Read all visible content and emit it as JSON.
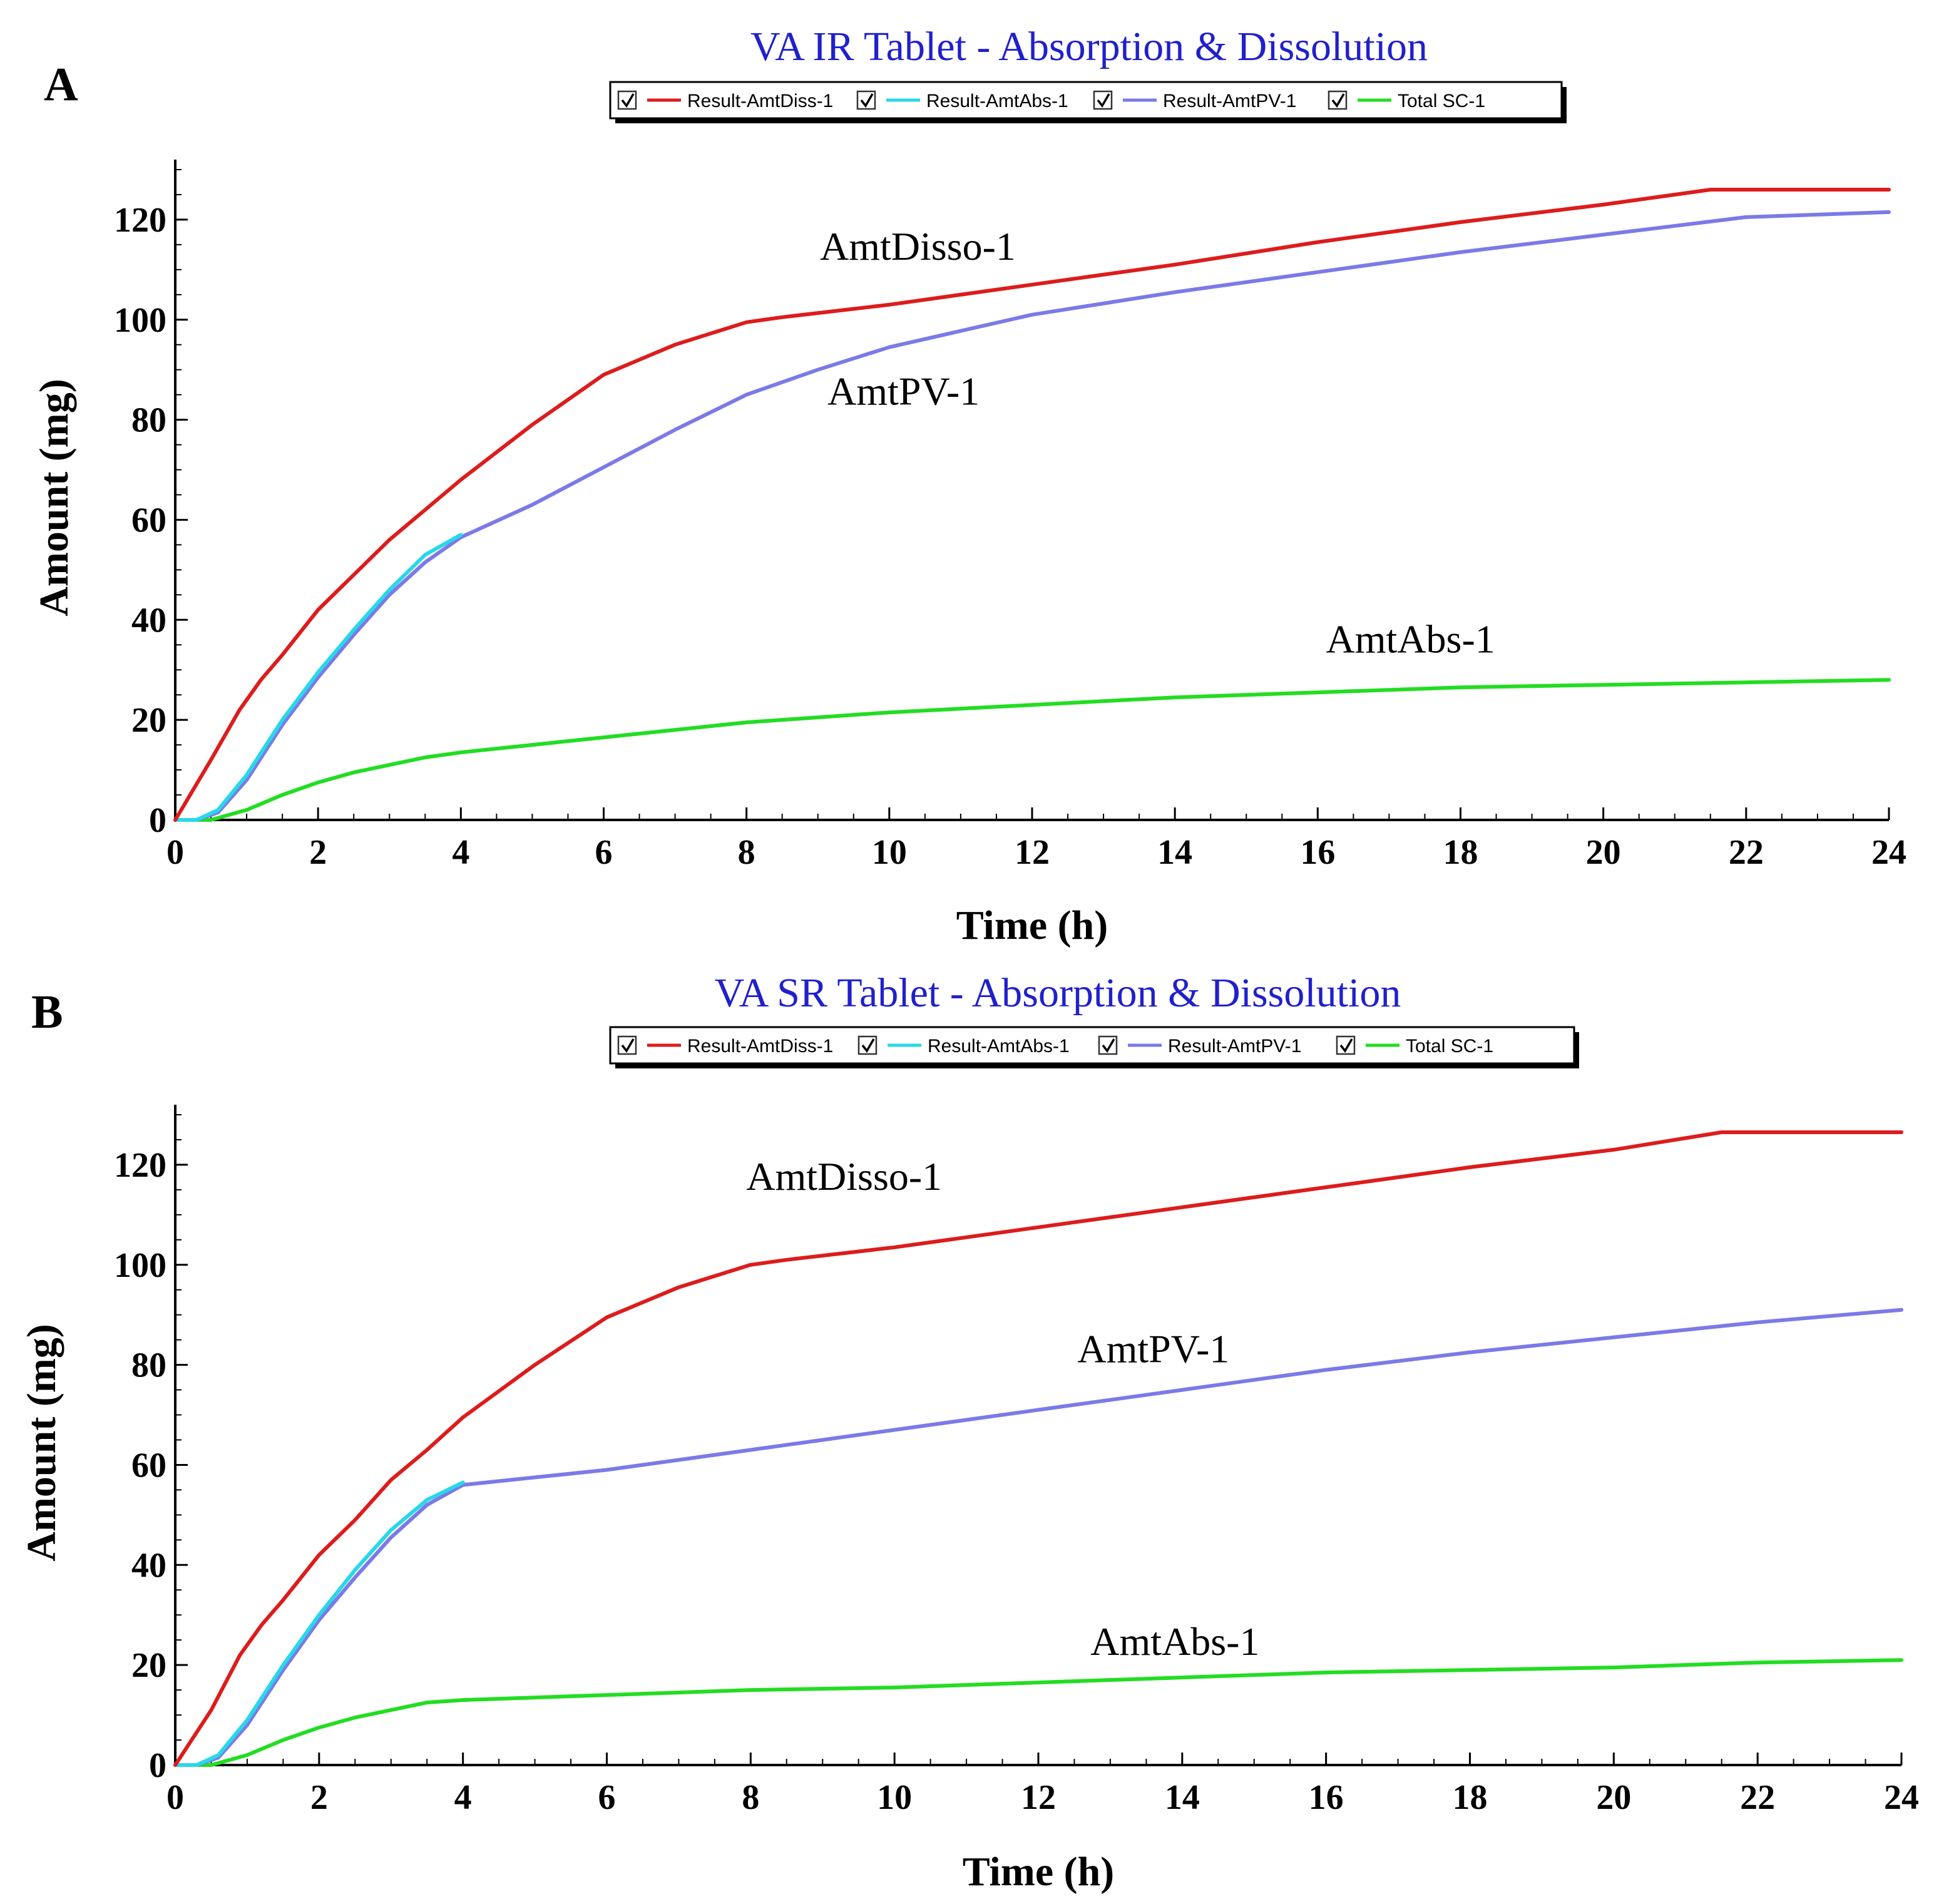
{
  "chart_data": [
    {
      "type": "line",
      "panel_label": "A",
      "title": "VA IR Tablet - Absorption & Dissolution",
      "xlabel": "Time (h)",
      "ylabel": "Amount (mg)",
      "xlim": [
        0,
        24
      ],
      "ylim": [
        0,
        132
      ],
      "x_ticks": [
        0,
        2,
        4,
        6,
        8,
        10,
        12,
        14,
        16,
        18,
        20,
        22,
        24
      ],
      "y_ticks": [
        0,
        20,
        40,
        60,
        80,
        100,
        120
      ],
      "grid": false,
      "legend_position": "top",
      "legend": [
        "Result-AmtDiss-1",
        "Result-AmtAbs-1",
        "Result-AmtPV-1",
        "Total SC-1"
      ],
      "series": [
        {
          "name": "Result-AmtDiss-1",
          "color": "#dd1c1c",
          "x": [
            0,
            0.5,
            0.9,
            1.2,
            1.5,
            2,
            2.5,
            3,
            3.5,
            4,
            5,
            6,
            7,
            8,
            8.5,
            10,
            12,
            14,
            16,
            18,
            20,
            21.5,
            22,
            24
          ],
          "y": [
            0,
            12,
            22,
            28,
            33,
            42,
            49,
            56,
            62,
            68,
            79,
            89,
            95,
            99.5,
            100.5,
            103,
            107,
            111,
            115.5,
            119.5,
            123,
            126,
            126,
            126
          ]
        },
        {
          "name": "Result-AmtAbs-1",
          "color": "#28d8e8",
          "x": [
            0,
            0.3,
            0.6,
            1,
            1.5,
            2,
            2.5,
            3,
            3.5,
            4
          ],
          "y": [
            0,
            0,
            2,
            9,
            20,
            29.5,
            38,
            46,
            53,
            57
          ]
        },
        {
          "name": "Result-AmtPV-1",
          "color": "#7a7ae8",
          "x": [
            0,
            0.3,
            0.6,
            1,
            1.5,
            2,
            2.5,
            3,
            3.5,
            4,
            5,
            6,
            7,
            8,
            9,
            10,
            12,
            14,
            16,
            18,
            20,
            22,
            24
          ],
          "y": [
            0,
            0,
            1.5,
            8,
            19,
            28.5,
            37,
            45,
            51.5,
            56.5,
            63,
            70.5,
            78,
            85,
            90,
            94.5,
            101,
            105.5,
            109.5,
            113.5,
            117,
            120.5,
            121.5
          ]
        },
        {
          "name": "Total SC-1",
          "color": "#22dd22",
          "x": [
            0,
            0.5,
            1,
            1.5,
            2,
            2.5,
            3,
            3.5,
            4,
            5,
            6,
            7,
            8,
            10,
            12,
            14,
            16,
            18,
            20,
            22,
            24
          ],
          "y": [
            0,
            0,
            2,
            5,
            7.5,
            9.5,
            11,
            12.5,
            13.5,
            15,
            16.5,
            18,
            19.5,
            21.5,
            23,
            24.5,
            25.5,
            26.5,
            27,
            27.5,
            28
          ]
        }
      ],
      "annotations": [
        {
          "text": "AmtDisso-1",
          "x": 10.4,
          "y": 112
        },
        {
          "text": "AmtPV-1",
          "x": 10.2,
          "y": 83
        },
        {
          "text": "AmtAbs-1",
          "x": 17.3,
          "y": 33.5
        }
      ]
    },
    {
      "type": "line",
      "panel_label": "B",
      "title": "VA SR Tablet - Absorption & Dissolution",
      "xlabel": "Time (h)",
      "ylabel": "Amount (mg)",
      "xlim": [
        0,
        24
      ],
      "ylim": [
        0,
        132
      ],
      "x_ticks": [
        0,
        2,
        4,
        6,
        8,
        10,
        12,
        14,
        16,
        18,
        20,
        22,
        24
      ],
      "y_ticks": [
        0,
        20,
        40,
        60,
        80,
        100,
        120
      ],
      "grid": false,
      "legend_position": "top",
      "legend": [
        "Result-AmtDiss-1",
        "Result-AmtAbs-1",
        "Result-AmtPV-1",
        "Total SC-1"
      ],
      "series": [
        {
          "name": "Result-AmtDiss-1",
          "color": "#dd1c1c",
          "x": [
            0,
            0.5,
            0.9,
            1.2,
            1.5,
            2,
            2.5,
            3,
            3.5,
            4,
            5,
            6,
            7,
            8,
            8.5,
            10,
            12,
            14,
            16,
            18,
            20,
            21.5,
            22,
            24
          ],
          "y": [
            0,
            11,
            22,
            28,
            33,
            42,
            49,
            57,
            63,
            69.5,
            80,
            89.5,
            95.5,
            100,
            101,
            103.5,
            107.5,
            111.5,
            115.5,
            119.5,
            123,
            126.5,
            126.5,
            126.5
          ]
        },
        {
          "name": "Result-AmtAbs-1",
          "color": "#28d8e8",
          "x": [
            0,
            0.3,
            0.6,
            1,
            1.5,
            2,
            2.5,
            3,
            3.5,
            4
          ],
          "y": [
            0,
            0,
            2,
            9,
            20,
            30,
            39,
            47,
            53,
            56.5
          ]
        },
        {
          "name": "Result-AmtPV-1",
          "color": "#7a7ae8",
          "x": [
            0,
            0.3,
            0.6,
            1,
            1.5,
            2,
            2.5,
            3,
            3.5,
            4,
            5,
            6,
            7,
            8,
            10,
            12,
            14,
            16,
            18,
            20,
            22,
            24
          ],
          "y": [
            0,
            0,
            1.5,
            8,
            19,
            29,
            37.5,
            45.5,
            52,
            56,
            57.5,
            59,
            61,
            63,
            67,
            71,
            75,
            79,
            82.5,
            85.5,
            88.5,
            91
          ]
        },
        {
          "name": "Total SC-1",
          "color": "#22dd22",
          "x": [
            0,
            0.5,
            1,
            1.5,
            2,
            2.5,
            3,
            3.5,
            4,
            5,
            6,
            7,
            8,
            10,
            12,
            14,
            16,
            18,
            20,
            22,
            24
          ],
          "y": [
            0,
            0,
            2,
            5,
            7.5,
            9.5,
            11,
            12.5,
            13,
            13.5,
            14,
            14.5,
            15,
            15.5,
            16.5,
            17.5,
            18.5,
            19,
            19.5,
            20.5,
            21
          ]
        }
      ],
      "annotations": [
        {
          "text": "AmtDisso-1",
          "x": 9.3,
          "y": 115
        },
        {
          "text": "AmtPV-1",
          "x": 13.6,
          "y": 80.5
        },
        {
          "text": "AmtAbs-1",
          "x": 13.9,
          "y": 22
        }
      ]
    }
  ]
}
